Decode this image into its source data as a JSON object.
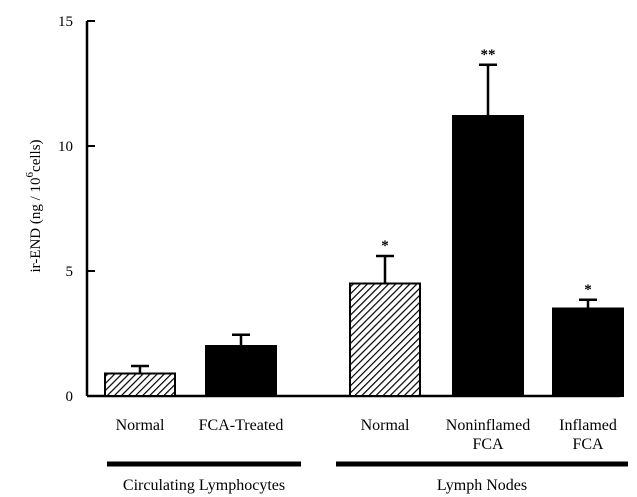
{
  "chart_data": {
    "type": "bar",
    "ylabel_main": "ir-END (ng / 10",
    "ylabel_sup": "6",
    "ylabel_tail": "cells)",
    "ylim": [
      0,
      15
    ],
    "yticks": [
      "0",
      "5",
      "10",
      "15"
    ],
    "ytick_values": [
      0,
      5,
      10,
      15
    ],
    "grid": false,
    "categories": [
      {
        "label": [
          "Normal"
        ],
        "value": 0.9,
        "error": 0.3,
        "pattern": "hatched",
        "sig": ""
      },
      {
        "label": [
          "FCA-Treated"
        ],
        "value": 2.0,
        "error": 0.45,
        "pattern": "solid",
        "sig": ""
      },
      {
        "label": [
          "Normal"
        ],
        "value": 4.5,
        "error": 1.1,
        "pattern": "hatched",
        "sig": "*"
      },
      {
        "label": [
          "Noninflamed",
          "FCA"
        ],
        "value": 11.2,
        "error": 2.05,
        "pattern": "solid",
        "sig": "**"
      },
      {
        "label": [
          "Inflamed",
          "FCA"
        ],
        "value": 3.5,
        "error": 0.35,
        "pattern": "solid",
        "sig": "*"
      }
    ],
    "groups": [
      {
        "label": "Circulating Lymphocytes",
        "members": [
          0,
          1
        ]
      },
      {
        "label": "Lymph Nodes",
        "members": [
          2,
          3,
          4
        ]
      }
    ]
  }
}
